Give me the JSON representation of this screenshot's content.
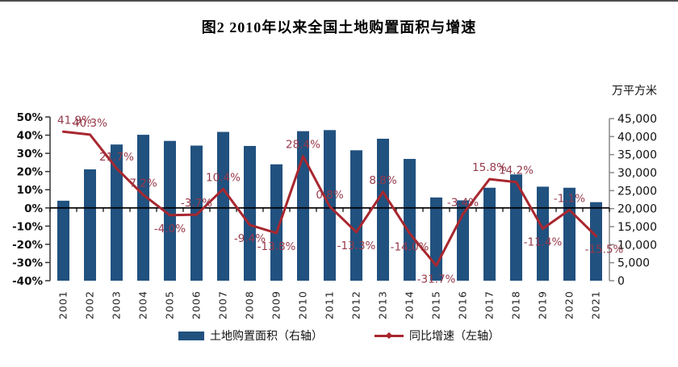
{
  "header": {
    "title": "图2  2010年以来全国土地购置面积与增速"
  },
  "legend": {
    "bar_label": "土地购置面积（右轴）",
    "line_label": "同比增速（左轴）"
  },
  "chart_data": {
    "type": "bar",
    "subtype": "bar-line-combo",
    "title": "图2  2010年以来全国土地购置面积与增速",
    "categories": [
      "2001",
      "2002",
      "2003",
      "2004",
      "2005",
      "2006",
      "2007",
      "2008",
      "2009",
      "2010",
      "2011",
      "2012",
      "2013",
      "2014",
      "2015",
      "2016",
      "2017",
      "2018",
      "2019",
      "2020",
      "2021"
    ],
    "bar_series": {
      "name": "土地购置面积（右轴）",
      "axis": "right",
      "unit": "万平方米",
      "color": "#21517F",
      "values": [
        22200,
        30900,
        37800,
        40500,
        38800,
        37500,
        41300,
        37400,
        32300,
        41500,
        41800,
        36200,
        39400,
        33800,
        23100,
        22300,
        25800,
        29500,
        26100,
        25800,
        21800
      ]
    },
    "line_series": {
      "name": "同比增速（左轴）",
      "axis": "left",
      "color": "#A8272F",
      "label_color": "#96394A",
      "values_pct": [
        41.9,
        40.3,
        21.7,
        7.2,
        -4.0,
        -3.7,
        10.4,
        -9.4,
        -13.8,
        28.4,
        0.8,
        -13.3,
        8.8,
        -14.0,
        -31.7,
        -3.4,
        15.8,
        14.2,
        -11.4,
        -1.1,
        -15.5
      ],
      "labels": [
        "41.9%",
        "40.3%",
        "21.7%",
        "7.2%",
        "-4.0%",
        "-3.7%",
        "10.4%",
        "-9.4%",
        "-13.8%",
        "28.4%",
        "0.8%",
        "-13.3%",
        "8.8%",
        "-14.0%",
        "-31.7%",
        "-3.4%",
        "15.8%",
        "14.2%",
        "-11.4%",
        "-1.1%",
        "-15.5%"
      ],
      "label_side": [
        "above",
        "above",
        "above",
        "above",
        "below",
        "above",
        "above",
        "below",
        "below",
        "above",
        "above",
        "below",
        "above",
        "below",
        "below",
        "above",
        "above",
        "above",
        "below",
        "above",
        "below"
      ]
    },
    "left_axis": {
      "min": -40,
      "max": 50,
      "step": 10,
      "tick_labels": [
        "50%",
        "40%",
        "30%",
        "20%",
        "10%",
        "0%",
        "-10%",
        "-20%",
        "-30%",
        "-40%"
      ]
    },
    "right_axis": {
      "min": 0,
      "max": 45000,
      "step": 5000,
      "title": "万平方米",
      "tick_labels": [
        "45,000",
        "40,000",
        "35,000",
        "30,000",
        "25,000",
        "20,000",
        "15,000",
        "10,000",
        "5,000",
        "0"
      ]
    },
    "grid": false,
    "legend_position": "bottom"
  }
}
